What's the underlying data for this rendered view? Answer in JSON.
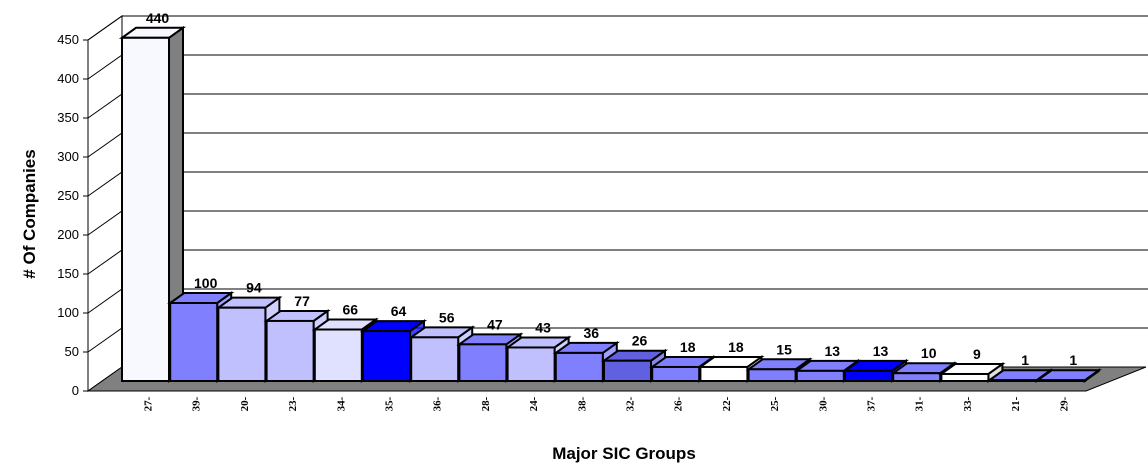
{
  "chart_data": {
    "type": "bar",
    "title": "",
    "xlabel": "Major SIC Groups",
    "ylabel": "# Of Companies",
    "ylim": [
      0,
      450
    ],
    "yticks": [
      0,
      50,
      100,
      150,
      200,
      250,
      300,
      350,
      400,
      450
    ],
    "grid": true,
    "legend": "none",
    "categories": [
      "27-",
      "39-",
      "20-",
      "23-",
      "34-",
      "35-",
      "36-",
      "28-",
      "24-",
      "38-",
      "32-",
      "26-",
      "22-",
      "25-",
      "30-",
      "37-",
      "31-",
      "33-",
      "21-",
      "29-"
    ],
    "values": [
      440,
      100,
      94,
      77,
      66,
      64,
      56,
      47,
      43,
      36,
      26,
      18,
      18,
      15,
      13,
      13,
      10,
      9,
      1,
      1
    ],
    "colors": [
      "#f8f8ff",
      "#8080ff",
      "#c0c0ff",
      "#c0c0ff",
      "#e0e0ff",
      "#0000ff",
      "#c0c0ff",
      "#8080ff",
      "#c0c0ff",
      "#8080ff",
      "#6060e0",
      "#8080ff",
      "#ffffff",
      "#8080ff",
      "#8080ff",
      "#0000ff",
      "#8080ff",
      "#ffffff",
      "#8080ff",
      "#8080ff"
    ]
  }
}
